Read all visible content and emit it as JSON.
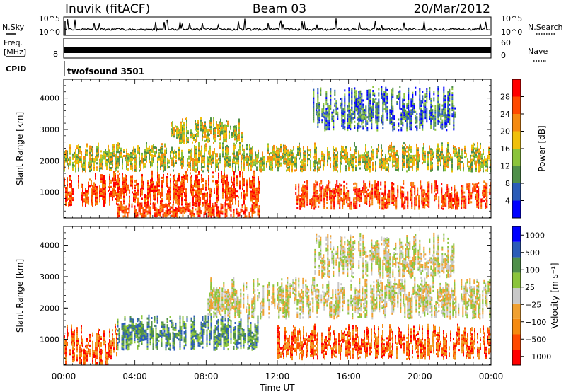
{
  "header": {
    "station": "Inuvik (fitACF)",
    "beam": "Beam 03",
    "date": "20/Mar/2012"
  },
  "status_panels": {
    "nsky": {
      "label": "N.Sky",
      "right_label": "N.Search",
      "left_ticks": [
        "10^5",
        "10^0"
      ],
      "right_ticks": [
        "10^5",
        "10^0"
      ]
    },
    "freq": {
      "label_line1": "Freq.",
      "label_line2": "[MHz]",
      "right_label": "Nave",
      "left_ticks": [
        "8"
      ],
      "right_ticks": [
        "60",
        "0"
      ]
    },
    "cpid": {
      "label": "CPID",
      "value": "twofsound 3501"
    }
  },
  "colors": {
    "power_scale": [
      "#0000ff",
      "#2b5cb8",
      "#4f8f4a",
      "#8bc43b",
      "#f0c00a",
      "#f58a10",
      "#ff4a00",
      "#ff0000"
    ],
    "velocity_scale": [
      "#ff0000",
      "#ff4a00",
      "#f58a10",
      "#f0a030",
      "#c8c8c8",
      "#8bc43b",
      "#4f8f4a",
      "#2b5cb8",
      "#0000ff"
    ]
  },
  "chart_data": [
    {
      "type": "heatmap",
      "title": "",
      "xlabel": "Time UT",
      "ylabel": "Slant Range [km]",
      "x_ticks": [
        "00:00",
        "04:00",
        "08:00",
        "12:00",
        "16:00",
        "20:00",
        "00:00"
      ],
      "x_range_hours": [
        0,
        24
      ],
      "y_ticks": [
        "1000",
        "2000",
        "3000",
        "4000"
      ],
      "y_range_km": [
        180,
        4600
      ],
      "colorbar": {
        "label": "Power [dB]",
        "range": [
          0,
          32
        ],
        "tick_labels": [
          "4",
          "8",
          "12",
          "16",
          "20",
          "24",
          "28"
        ]
      },
      "bands": [
        {
          "hours": [
            0,
            11
          ],
          "range_km": [
            600,
            1700
          ],
          "level": "high"
        },
        {
          "hours": [
            3,
            11
          ],
          "range_km": [
            200,
            700
          ],
          "level": "high"
        },
        {
          "hours": [
            13,
            24
          ],
          "range_km": [
            500,
            1400
          ],
          "level": "high"
        },
        {
          "hours": [
            0,
            24
          ],
          "range_km": [
            1700,
            2600
          ],
          "level": "medium"
        },
        {
          "hours": [
            6,
            10
          ],
          "range_km": [
            2600,
            3400
          ],
          "level": "medium"
        },
        {
          "hours": [
            14,
            22
          ],
          "range_km": [
            3000,
            4400
          ],
          "level": "low"
        }
      ]
    },
    {
      "type": "heatmap",
      "title": "",
      "xlabel": "Time UT",
      "ylabel": "Slant Range [km]",
      "x_ticks": [
        "00:00",
        "04:00",
        "08:00",
        "12:00",
        "16:00",
        "20:00",
        "00:00"
      ],
      "x_range_hours": [
        0,
        24
      ],
      "y_ticks": [
        "1000",
        "2000",
        "3000",
        "4000"
      ],
      "y_range_km": [
        180,
        4600
      ],
      "colorbar": {
        "label": "Velocity [m s⁻¹]",
        "range": [
          -1000,
          1000
        ],
        "tick_labels": [
          "1000",
          "500",
          "100",
          "25",
          "−25",
          "−100",
          "−500",
          "−1000"
        ]
      },
      "bands": [
        {
          "hours": [
            0,
            3
          ],
          "range_km": [
            200,
            1500
          ],
          "level": "negative"
        },
        {
          "hours": [
            3,
            11
          ],
          "range_km": [
            700,
            1800
          ],
          "level": "positive"
        },
        {
          "hours": [
            12,
            24
          ],
          "range_km": [
            400,
            1500
          ],
          "level": "negative"
        },
        {
          "hours": [
            8,
            24
          ],
          "range_km": [
            1700,
            3000
          ],
          "level": "near-zero"
        },
        {
          "hours": [
            14,
            22
          ],
          "range_km": [
            3000,
            4400
          ],
          "level": "near-zero"
        }
      ]
    }
  ]
}
